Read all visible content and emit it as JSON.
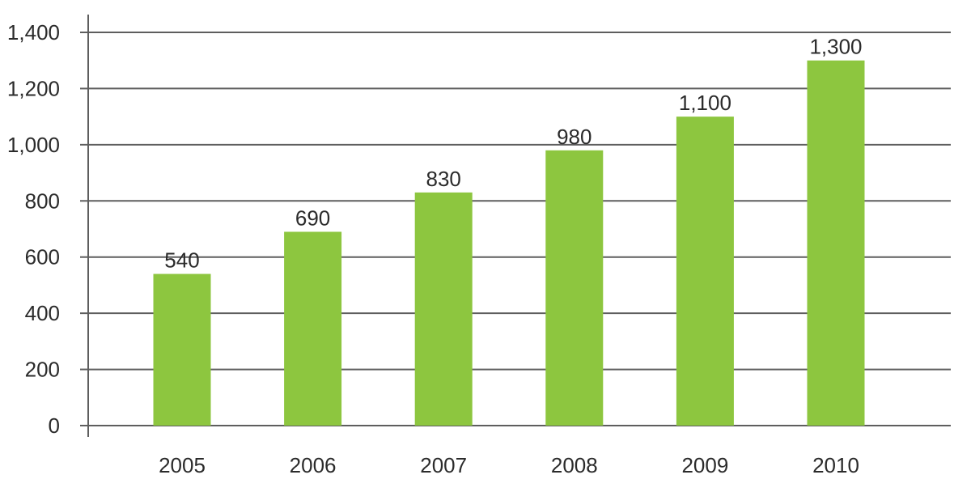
{
  "chart_data": {
    "type": "bar",
    "categories": [
      "2005",
      "2006",
      "2007",
      "2008",
      "2009",
      "2010"
    ],
    "values": [
      540,
      690,
      830,
      980,
      1100,
      1300
    ],
    "value_labels": [
      "540",
      "690",
      "830",
      "980",
      "1,100",
      "1,300"
    ],
    "title": "",
    "xlabel": "",
    "ylabel": "",
    "ylim": [
      0,
      1400
    ],
    "yticks": [
      0,
      200,
      400,
      600,
      800,
      1000,
      1200,
      1400
    ],
    "ytick_labels": [
      "0",
      "200",
      "400",
      "600",
      "800",
      "1,000",
      "1,200",
      "1,400"
    ],
    "grid": true,
    "legend": "none",
    "bar_color": "#8dc63f"
  }
}
